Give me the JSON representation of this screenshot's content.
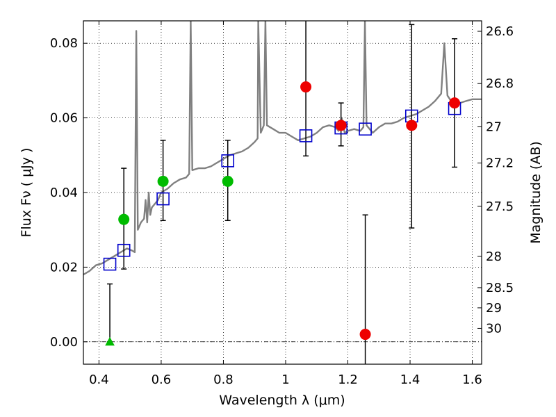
{
  "chart_data": {
    "type": "scatter",
    "xlabel": "Wavelength  λ (μm)",
    "ylabel": "Flux  Fν  ( μJy )",
    "ylabel_right": "Magnitude (AB)",
    "xlim": [
      0.35,
      1.63
    ],
    "ylim": [
      -0.006,
      0.086
    ],
    "x_ticks": [
      0.4,
      0.6,
      0.8,
      1.0,
      1.2,
      1.4,
      1.6
    ],
    "x_tick_labels": [
      "0.4",
      "0.6",
      "0.8",
      "1",
      "1.2",
      "1.4",
      "1.6"
    ],
    "y_ticks": [
      0.0,
      0.02,
      0.04,
      0.06,
      0.08
    ],
    "y_tick_labels": [
      "0.00",
      "0.02",
      "0.04",
      "0.06",
      "0.08"
    ],
    "right_ticks": [
      {
        "label": "26.6",
        "flux": 0.0832
      },
      {
        "label": "26.8",
        "flux": 0.0692
      },
      {
        "label": "27",
        "flux": 0.0576
      },
      {
        "label": "27.2",
        "flux": 0.0479
      },
      {
        "label": "27.5",
        "flux": 0.0363
      },
      {
        "label": "28",
        "flux": 0.0229
      },
      {
        "label": "28.5",
        "flux": 0.0145
      },
      {
        "label": "29",
        "flux": 0.0091
      },
      {
        "label": "30",
        "flux": 0.0036
      }
    ],
    "grid": "dotted",
    "sed_model": [
      [
        0.35,
        0.018
      ],
      [
        0.37,
        0.019
      ],
      [
        0.39,
        0.0205
      ],
      [
        0.41,
        0.021
      ],
      [
        0.43,
        0.022
      ],
      [
        0.45,
        0.023
      ],
      [
        0.47,
        0.024
      ],
      [
        0.49,
        0.025
      ],
      [
        0.505,
        0.0245
      ],
      [
        0.515,
        0.024
      ],
      [
        0.52,
        0.0833
      ],
      [
        0.525,
        0.03
      ],
      [
        0.535,
        0.032
      ],
      [
        0.545,
        0.033
      ],
      [
        0.55,
        0.038
      ],
      [
        0.555,
        0.032
      ],
      [
        0.56,
        0.04
      ],
      [
        0.565,
        0.034
      ],
      [
        0.57,
        0.036
      ],
      [
        0.58,
        0.037
      ],
      [
        0.59,
        0.038
      ],
      [
        0.6,
        0.04
      ],
      [
        0.62,
        0.041
      ],
      [
        0.64,
        0.0425
      ],
      [
        0.66,
        0.0435
      ],
      [
        0.68,
        0.044
      ],
      [
        0.69,
        0.045
      ],
      [
        0.695,
        0.086
      ],
      [
        0.7,
        0.046
      ],
      [
        0.72,
        0.0465
      ],
      [
        0.74,
        0.0465
      ],
      [
        0.76,
        0.047
      ],
      [
        0.78,
        0.048
      ],
      [
        0.8,
        0.049
      ],
      [
        0.82,
        0.05
      ],
      [
        0.84,
        0.0505
      ],
      [
        0.86,
        0.051
      ],
      [
        0.88,
        0.052
      ],
      [
        0.9,
        0.0535
      ],
      [
        0.91,
        0.0545
      ],
      [
        0.912,
        0.086
      ],
      [
        0.92,
        0.056
      ],
      [
        0.93,
        0.058
      ],
      [
        0.935,
        0.086
      ],
      [
        0.94,
        0.058
      ],
      [
        0.96,
        0.057
      ],
      [
        0.98,
        0.056
      ],
      [
        1.0,
        0.056
      ],
      [
        1.02,
        0.055
      ],
      [
        1.04,
        0.054
      ],
      [
        1.06,
        0.0545
      ],
      [
        1.08,
        0.055
      ],
      [
        1.1,
        0.056
      ],
      [
        1.12,
        0.0575
      ],
      [
        1.14,
        0.058
      ],
      [
        1.16,
        0.0575
      ],
      [
        1.17,
        0.0565
      ],
      [
        1.18,
        0.06
      ],
      [
        1.19,
        0.056
      ],
      [
        1.2,
        0.0565
      ],
      [
        1.22,
        0.057
      ],
      [
        1.24,
        0.0565
      ],
      [
        1.25,
        0.0575
      ],
      [
        1.255,
        0.086
      ],
      [
        1.26,
        0.058
      ],
      [
        1.28,
        0.056
      ],
      [
        1.3,
        0.0575
      ],
      [
        1.32,
        0.0585
      ],
      [
        1.34,
        0.0585
      ],
      [
        1.36,
        0.059
      ],
      [
        1.38,
        0.06
      ],
      [
        1.4,
        0.0605
      ],
      [
        1.42,
        0.061
      ],
      [
        1.44,
        0.062
      ],
      [
        1.46,
        0.063
      ],
      [
        1.48,
        0.0645
      ],
      [
        1.5,
        0.0665
      ],
      [
        1.51,
        0.08
      ],
      [
        1.52,
        0.066
      ],
      [
        1.54,
        0.0635
      ],
      [
        1.56,
        0.064
      ],
      [
        1.58,
        0.0645
      ],
      [
        1.6,
        0.065
      ],
      [
        1.63,
        0.065
      ]
    ],
    "model_photometry": [
      {
        "x": 0.435,
        "y": 0.0208
      },
      {
        "x": 0.48,
        "y": 0.0245
      },
      {
        "x": 0.606,
        "y": 0.0383
      },
      {
        "x": 0.814,
        "y": 0.0485
      },
      {
        "x": 1.065,
        "y": 0.0552
      },
      {
        "x": 1.178,
        "y": 0.0573
      },
      {
        "x": 1.256,
        "y": 0.057
      },
      {
        "x": 1.405,
        "y": 0.0605
      },
      {
        "x": 1.543,
        "y": 0.0625
      }
    ],
    "observed": [
      {
        "band": "green",
        "marker": "triangle",
        "x": 0.435,
        "y": 0.0,
        "err_lo": 0.0,
        "err_hi": 0.0155
      },
      {
        "band": "green",
        "marker": "circle",
        "x": 0.48,
        "y": 0.0328,
        "err_lo": 0.0195,
        "err_hi": 0.0465
      },
      {
        "band": "green",
        "marker": "circle",
        "x": 0.606,
        "y": 0.043,
        "err_lo": 0.0325,
        "err_hi": 0.054
      },
      {
        "band": "green",
        "marker": "circle",
        "x": 0.814,
        "y": 0.043,
        "err_lo": 0.0325,
        "err_hi": 0.054
      },
      {
        "band": "red",
        "marker": "circle",
        "x": 1.065,
        "y": 0.0683,
        "err_lo": 0.0498,
        "err_hi": 0.088
      },
      {
        "band": "red",
        "marker": "circle",
        "x": 1.178,
        "y": 0.058,
        "err_lo": 0.0525,
        "err_hi": 0.064
      },
      {
        "band": "red",
        "marker": "circle",
        "x": 1.256,
        "y": 0.002,
        "err_lo": -0.007,
        "err_hi": 0.034
      },
      {
        "band": "red",
        "marker": "circle",
        "x": 1.405,
        "y": 0.058,
        "err_lo": 0.0305,
        "err_hi": 0.085
      },
      {
        "band": "red",
        "marker": "circle",
        "x": 1.543,
        "y": 0.064,
        "err_lo": 0.0468,
        "err_hi": 0.0812
      }
    ],
    "colors": {
      "model_line": "#808080",
      "model_boxes": "#0000cc",
      "green_points": "#00bb00",
      "red_points": "#ee0000",
      "errorbars": "#000000",
      "grid": "#000000"
    }
  }
}
